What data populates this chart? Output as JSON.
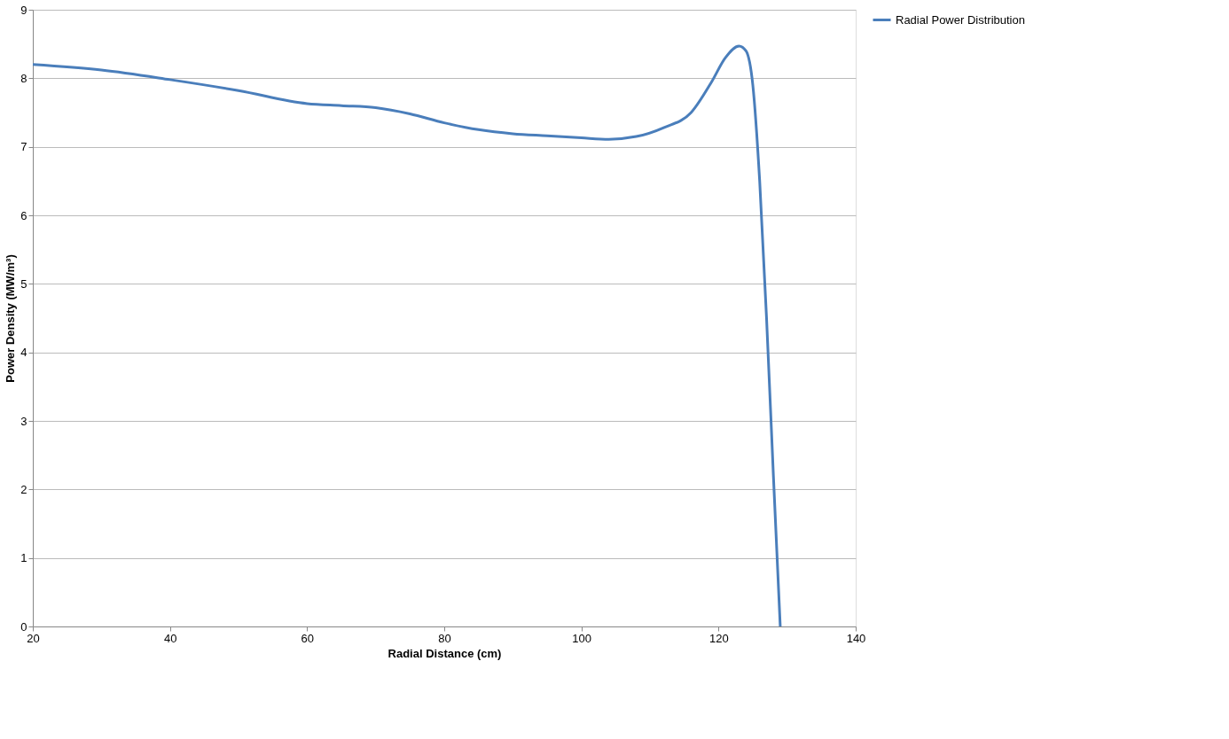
{
  "chart_data": {
    "type": "line",
    "xlabel": "Radial Distance (cm)",
    "ylabel": "Power Density (MW/m³)",
    "xlim": [
      20,
      140
    ],
    "xticks": [
      20,
      40,
      60,
      80,
      100,
      120,
      140
    ],
    "ylim": [
      0,
      9
    ],
    "yticks": [
      0,
      1,
      2,
      3,
      4,
      5,
      6,
      7,
      8,
      9
    ],
    "grid": "y",
    "legend": "right",
    "marker": "none",
    "line_style": "solid",
    "series": [
      {
        "name": "Radial Power Distribution",
        "color": "#4a7ebb",
        "x": [
          20,
          30,
          40,
          50,
          60,
          65,
          70,
          75,
          80,
          85,
          90,
          95,
          100,
          104,
          108,
          112,
          116,
          119,
          121,
          123,
          124,
          125,
          126,
          127,
          128,
          129
        ],
        "values": [
          8.2,
          8.12,
          7.98,
          7.82,
          7.63,
          7.6,
          7.57,
          7.48,
          7.35,
          7.25,
          7.19,
          7.16,
          7.13,
          7.11,
          7.15,
          7.28,
          7.5,
          7.95,
          8.3,
          8.47,
          8.4,
          7.9,
          6.5,
          4.5,
          2.2,
          0
        ]
      }
    ]
  }
}
